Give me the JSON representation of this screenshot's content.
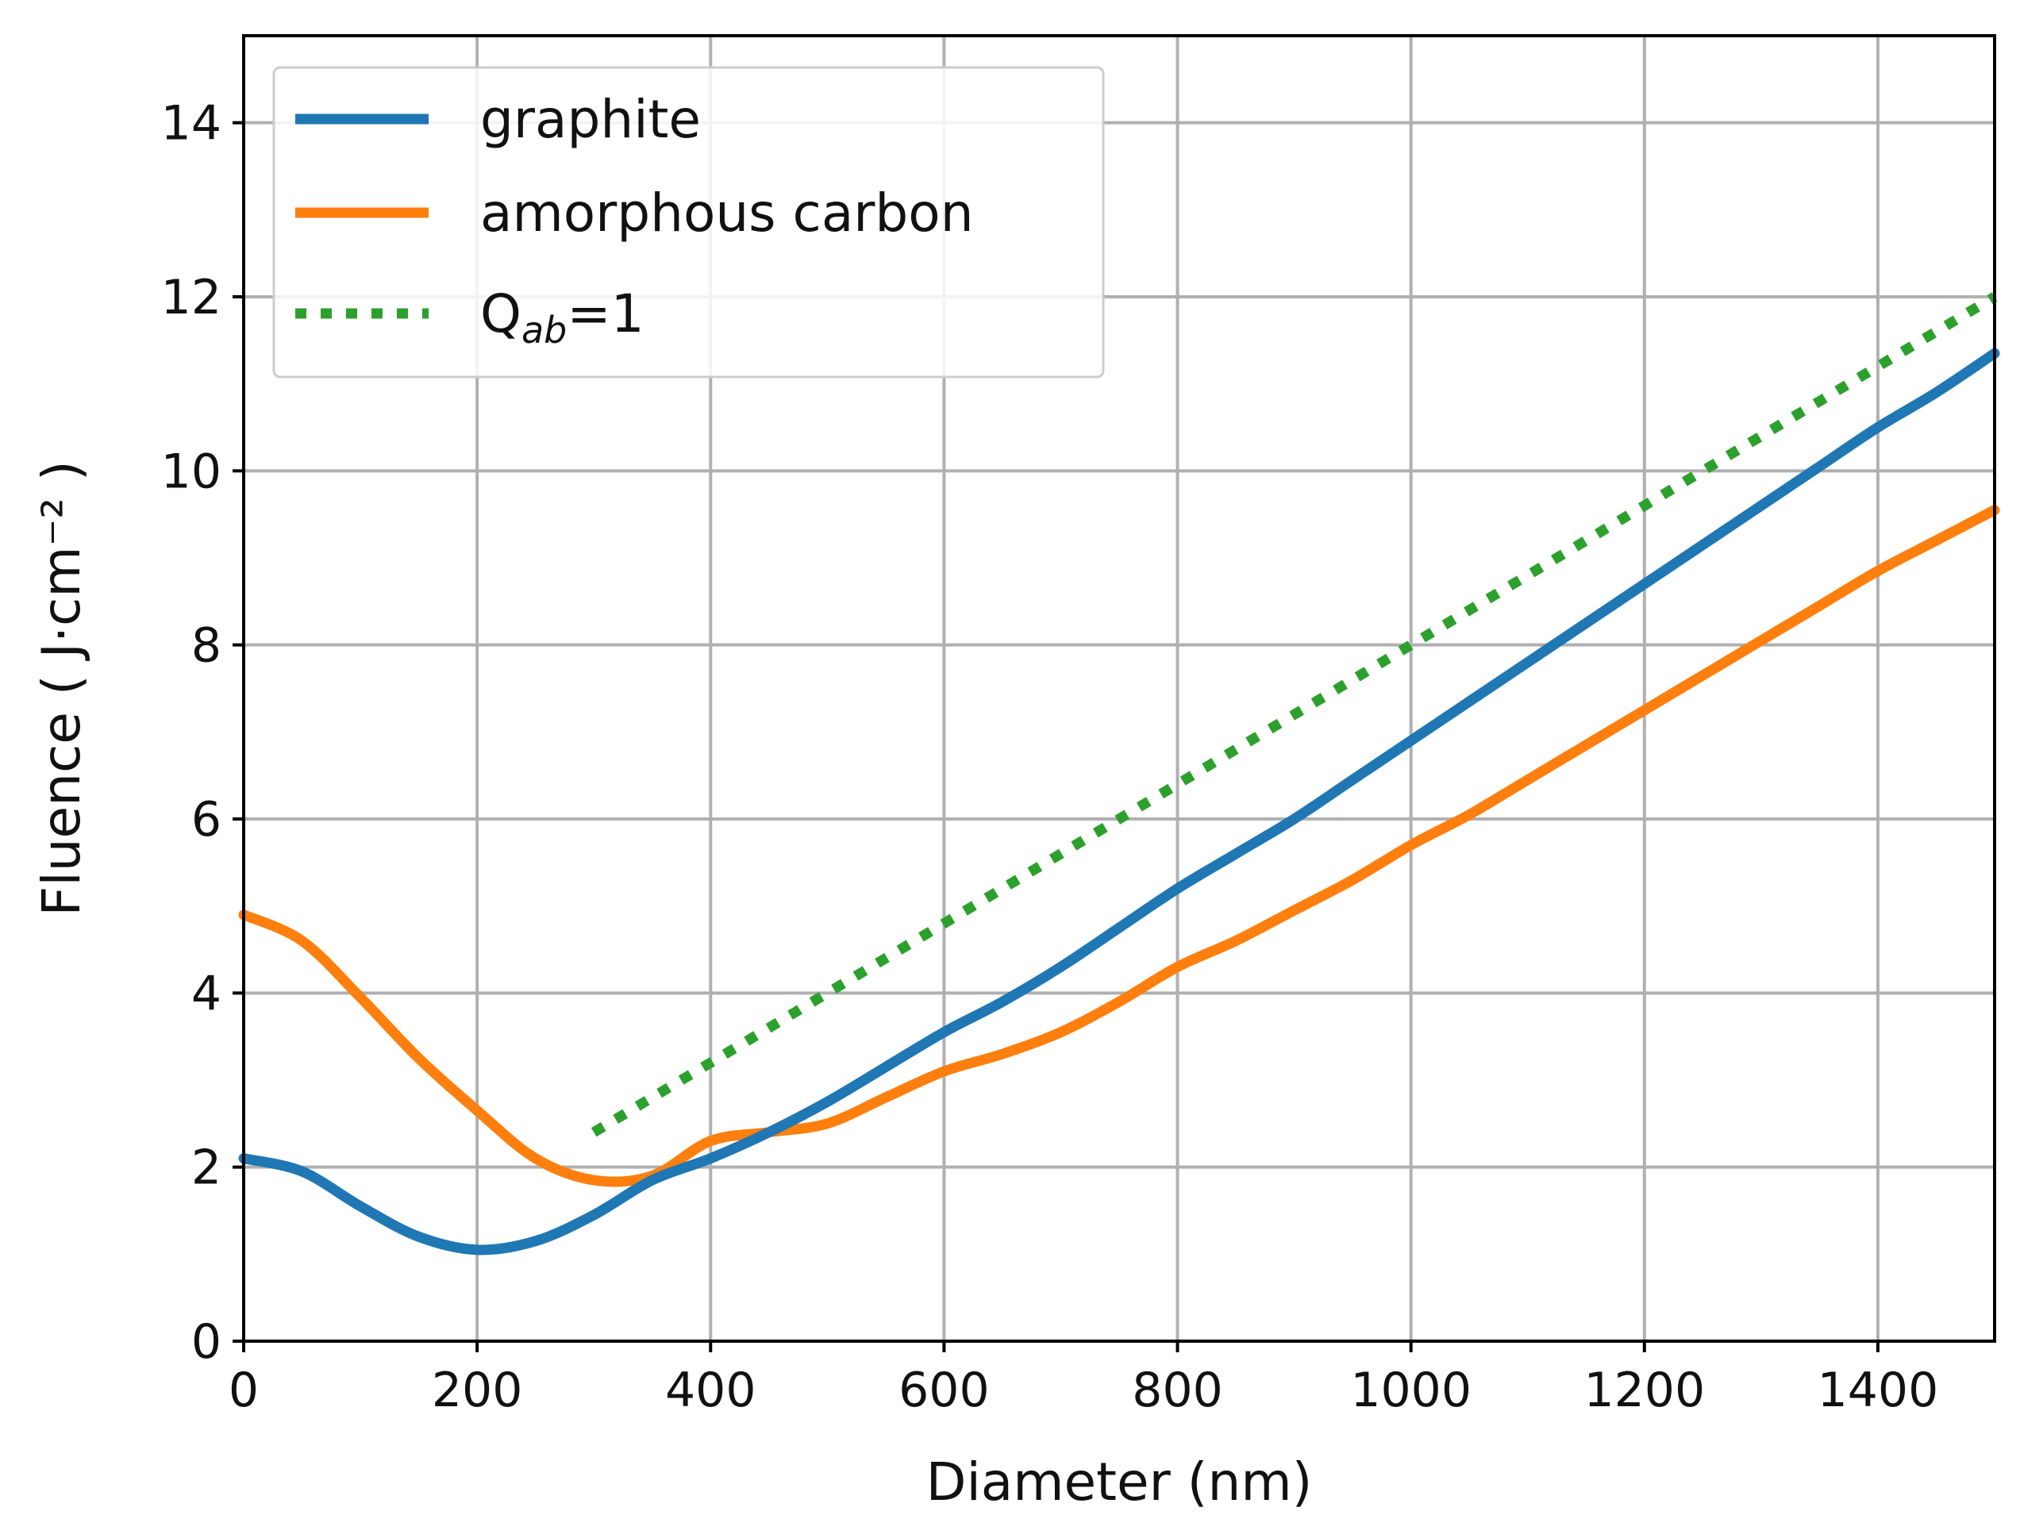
{
  "chart_data": {
    "type": "line",
    "title": "",
    "xlabel": "Diameter (nm)",
    "ylabel": "Fluence ( J·cm⁻² )",
    "xlim": [
      0,
      1500
    ],
    "ylim": [
      0,
      15
    ],
    "xticks": [
      0,
      200,
      400,
      600,
      800,
      1000,
      1200,
      1400
    ],
    "yticks": [
      0,
      2,
      4,
      6,
      8,
      10,
      12,
      14
    ],
    "grid": true,
    "legend_position": "top-left",
    "series": [
      {
        "name": "graphite",
        "color": "#1f77b4",
        "style": "solid",
        "x": [
          0,
          50,
          100,
          150,
          200,
          250,
          300,
          350,
          400,
          450,
          500,
          550,
          600,
          650,
          700,
          750,
          800,
          850,
          900,
          950,
          1000,
          1050,
          1100,
          1150,
          1200,
          1250,
          1300,
          1350,
          1400,
          1450,
          1500
        ],
        "y": [
          2.1,
          1.95,
          1.55,
          1.2,
          1.05,
          1.15,
          1.45,
          1.85,
          2.1,
          2.4,
          2.75,
          3.15,
          3.55,
          3.9,
          4.3,
          4.75,
          5.2,
          5.6,
          6.0,
          6.45,
          6.9,
          7.35,
          7.8,
          8.25,
          8.7,
          9.15,
          9.6,
          10.05,
          10.5,
          10.9,
          11.35
        ]
      },
      {
        "name": "amorphous carbon",
        "color": "#ff7f0e",
        "style": "solid",
        "x": [
          0,
          50,
          100,
          150,
          200,
          250,
          300,
          350,
          400,
          450,
          500,
          550,
          600,
          650,
          700,
          750,
          800,
          850,
          900,
          950,
          1000,
          1050,
          1100,
          1150,
          1200,
          1250,
          1300,
          1350,
          1400,
          1450,
          1500
        ],
        "y": [
          4.9,
          4.6,
          3.95,
          3.25,
          2.65,
          2.1,
          1.85,
          1.9,
          2.3,
          2.4,
          2.5,
          2.8,
          3.1,
          3.3,
          3.55,
          3.9,
          4.3,
          4.6,
          4.95,
          5.3,
          5.7,
          6.05,
          6.45,
          6.85,
          7.25,
          7.65,
          8.05,
          8.45,
          8.85,
          9.2,
          9.55
        ]
      },
      {
        "name": "Q",
        "name_subscript": "ab",
        "name_suffix": "=1",
        "color": "#2ca02c",
        "style": "dotted",
        "x": [
          300,
          1500
        ],
        "y": [
          2.4,
          12.0
        ]
      }
    ]
  }
}
